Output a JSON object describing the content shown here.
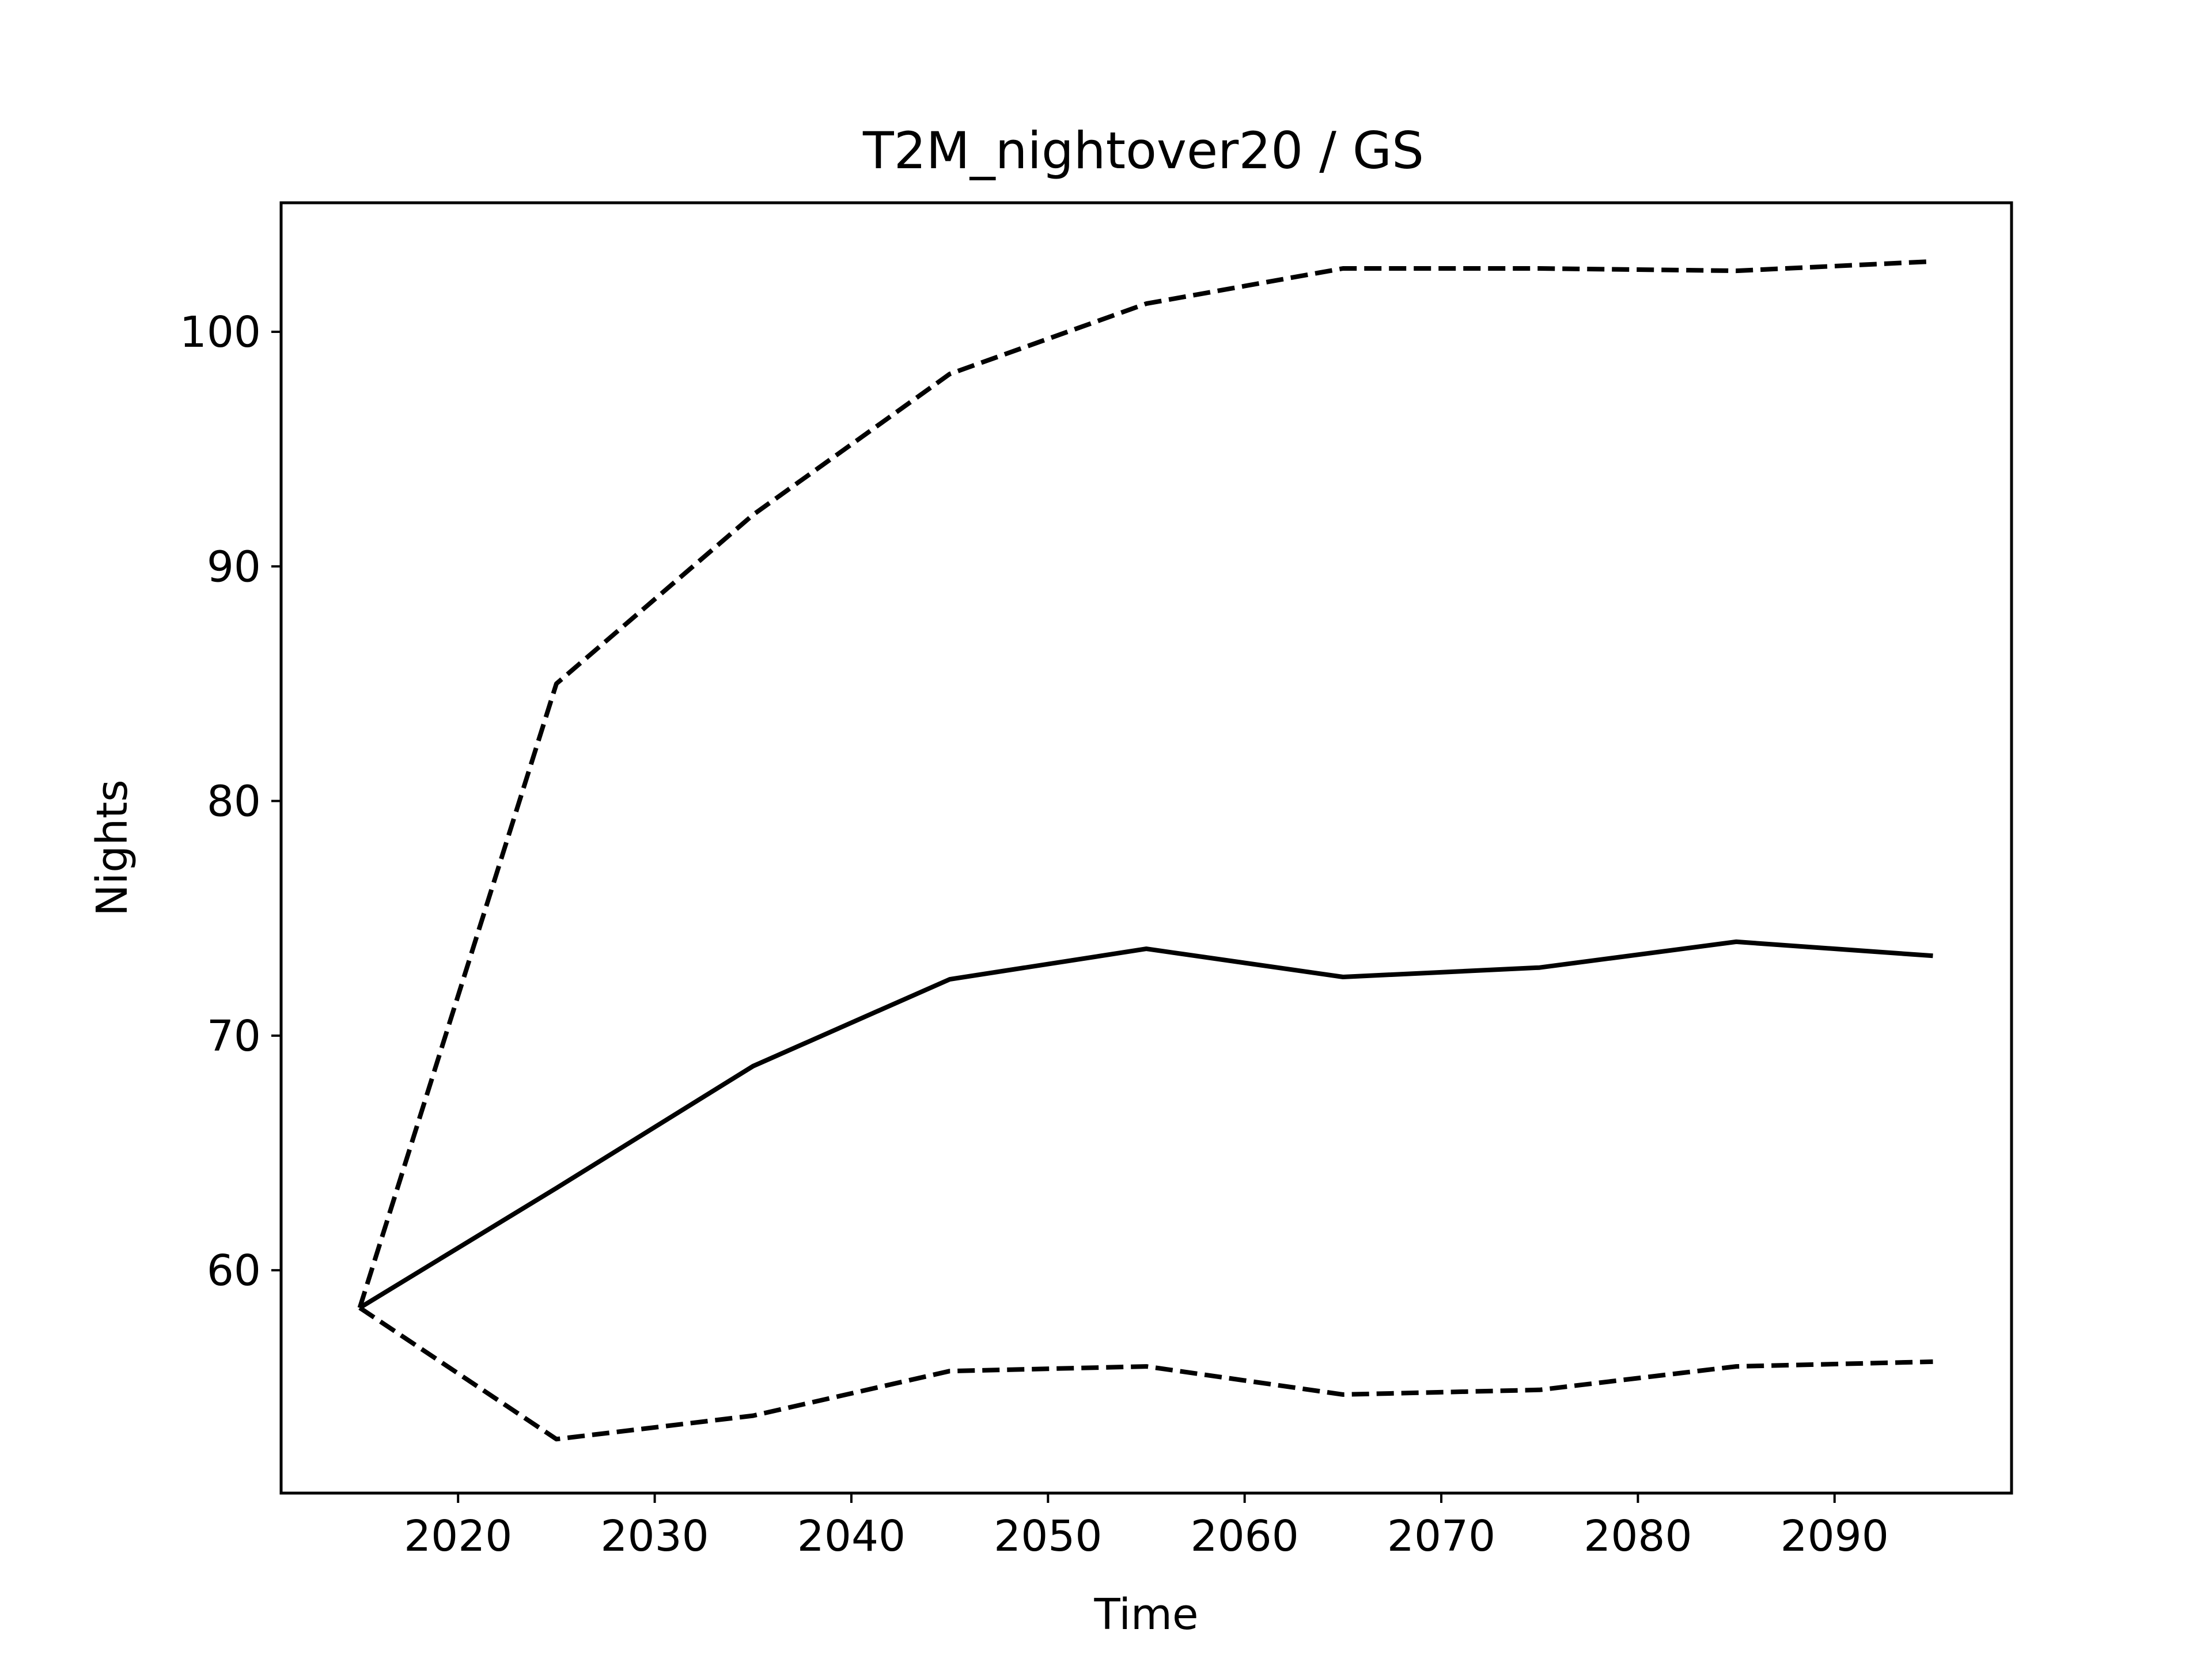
{
  "chart_data": {
    "type": "line",
    "title": "T2M_nightover20 / GS",
    "xlabel": "Time",
    "ylabel": "Nights",
    "x": [
      2015,
      2025,
      2035,
      2045,
      2055,
      2065,
      2075,
      2085,
      2095
    ],
    "xlim": [
      2011,
      2099
    ],
    "ylim": [
      50.5,
      105.5
    ],
    "xticks": [
      2020,
      2030,
      2040,
      2050,
      2060,
      2070,
      2080,
      2090
    ],
    "yticks": [
      60,
      70,
      80,
      90,
      100
    ],
    "grid": false,
    "series": [
      {
        "values": [
          58.4,
          63.5,
          68.7,
          72.4,
          73.7,
          72.5,
          72.9,
          74.0,
          73.4
        ],
        "style": "solid",
        "color": "#000000"
      },
      {
        "values": [
          58.4,
          85.0,
          92.2,
          98.2,
          101.2,
          102.7,
          102.7,
          102.6,
          103.0
        ],
        "style": "dashed",
        "color": "#000000"
      },
      {
        "values": [
          58.4,
          52.8,
          53.8,
          55.7,
          55.9,
          54.7,
          54.9,
          55.9,
          56.1
        ],
        "style": "dashed",
        "color": "#000000"
      }
    ]
  }
}
